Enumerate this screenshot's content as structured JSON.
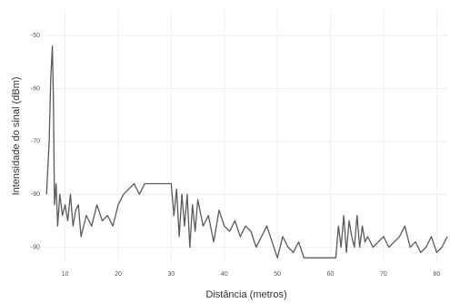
{
  "chart_data": {
    "type": "line",
    "xlabel": "Distância (metros)",
    "ylabel": "Intensidade do sinal (dBm)",
    "xlim": [
      6.3,
      82
    ],
    "ylim": [
      -93,
      -45
    ],
    "xticks": [
      10,
      20,
      30,
      40,
      50,
      60,
      70,
      80
    ],
    "yticks": [
      -50,
      -60,
      -70,
      -80,
      -90
    ],
    "grid": true,
    "x": [
      6.5,
      7,
      7.3,
      7.6,
      7.8,
      8,
      8.3,
      8.6,
      9,
      9.5,
      10,
      10.5,
      11,
      11.5,
      12,
      12.5,
      13,
      14,
      15,
      16,
      17,
      18,
      19,
      20,
      21,
      22,
      23,
      24,
      25,
      26,
      27,
      28,
      29,
      30,
      30.5,
      31,
      31.5,
      32,
      32.5,
      33,
      33.5,
      34,
      34.5,
      35,
      36,
      37,
      38,
      39,
      40,
      41,
      42,
      43,
      44,
      45,
      46,
      47,
      48,
      49,
      50,
      51,
      52,
      53,
      54,
      55,
      58,
      61,
      61.5,
      62,
      62.5,
      63,
      63.5,
      64,
      64.5,
      65,
      65.5,
      66,
      66.5,
      67,
      68,
      69,
      70,
      71,
      72,
      73,
      74,
      75,
      76,
      77,
      78,
      79,
      80,
      81,
      82
    ],
    "series": [
      {
        "color": "#5a5a5a",
        "values": [
          -80,
          -70,
          -58,
          -52,
          -62,
          -82,
          -78,
          -86,
          -80,
          -84,
          -82,
          -85,
          -80,
          -86,
          -83,
          -82,
          -88,
          -84,
          -86,
          -82,
          -85,
          -84,
          -86,
          -82,
          -80,
          -79,
          -78,
          -80,
          -78,
          -78,
          -78,
          -78,
          -78,
          -78,
          -84,
          -79,
          -88,
          -80,
          -86,
          -80,
          -90,
          -82,
          -87,
          -81,
          -86,
          -84,
          -89,
          -83,
          -86,
          -87,
          -85,
          -88,
          -86,
          -87,
          -90,
          -88,
          -86,
          -89,
          -92,
          -88,
          -90,
          -91,
          -89,
          -92,
          -92,
          -92,
          -86,
          -90,
          -84,
          -91,
          -85,
          -88,
          -90,
          -84,
          -90,
          -86,
          -89,
          -88,
          -90,
          -89,
          -88,
          -90,
          -89,
          -88,
          -86,
          -90,
          -89,
          -91,
          -90,
          -88,
          -91,
          -90,
          -88
        ]
      }
    ]
  }
}
